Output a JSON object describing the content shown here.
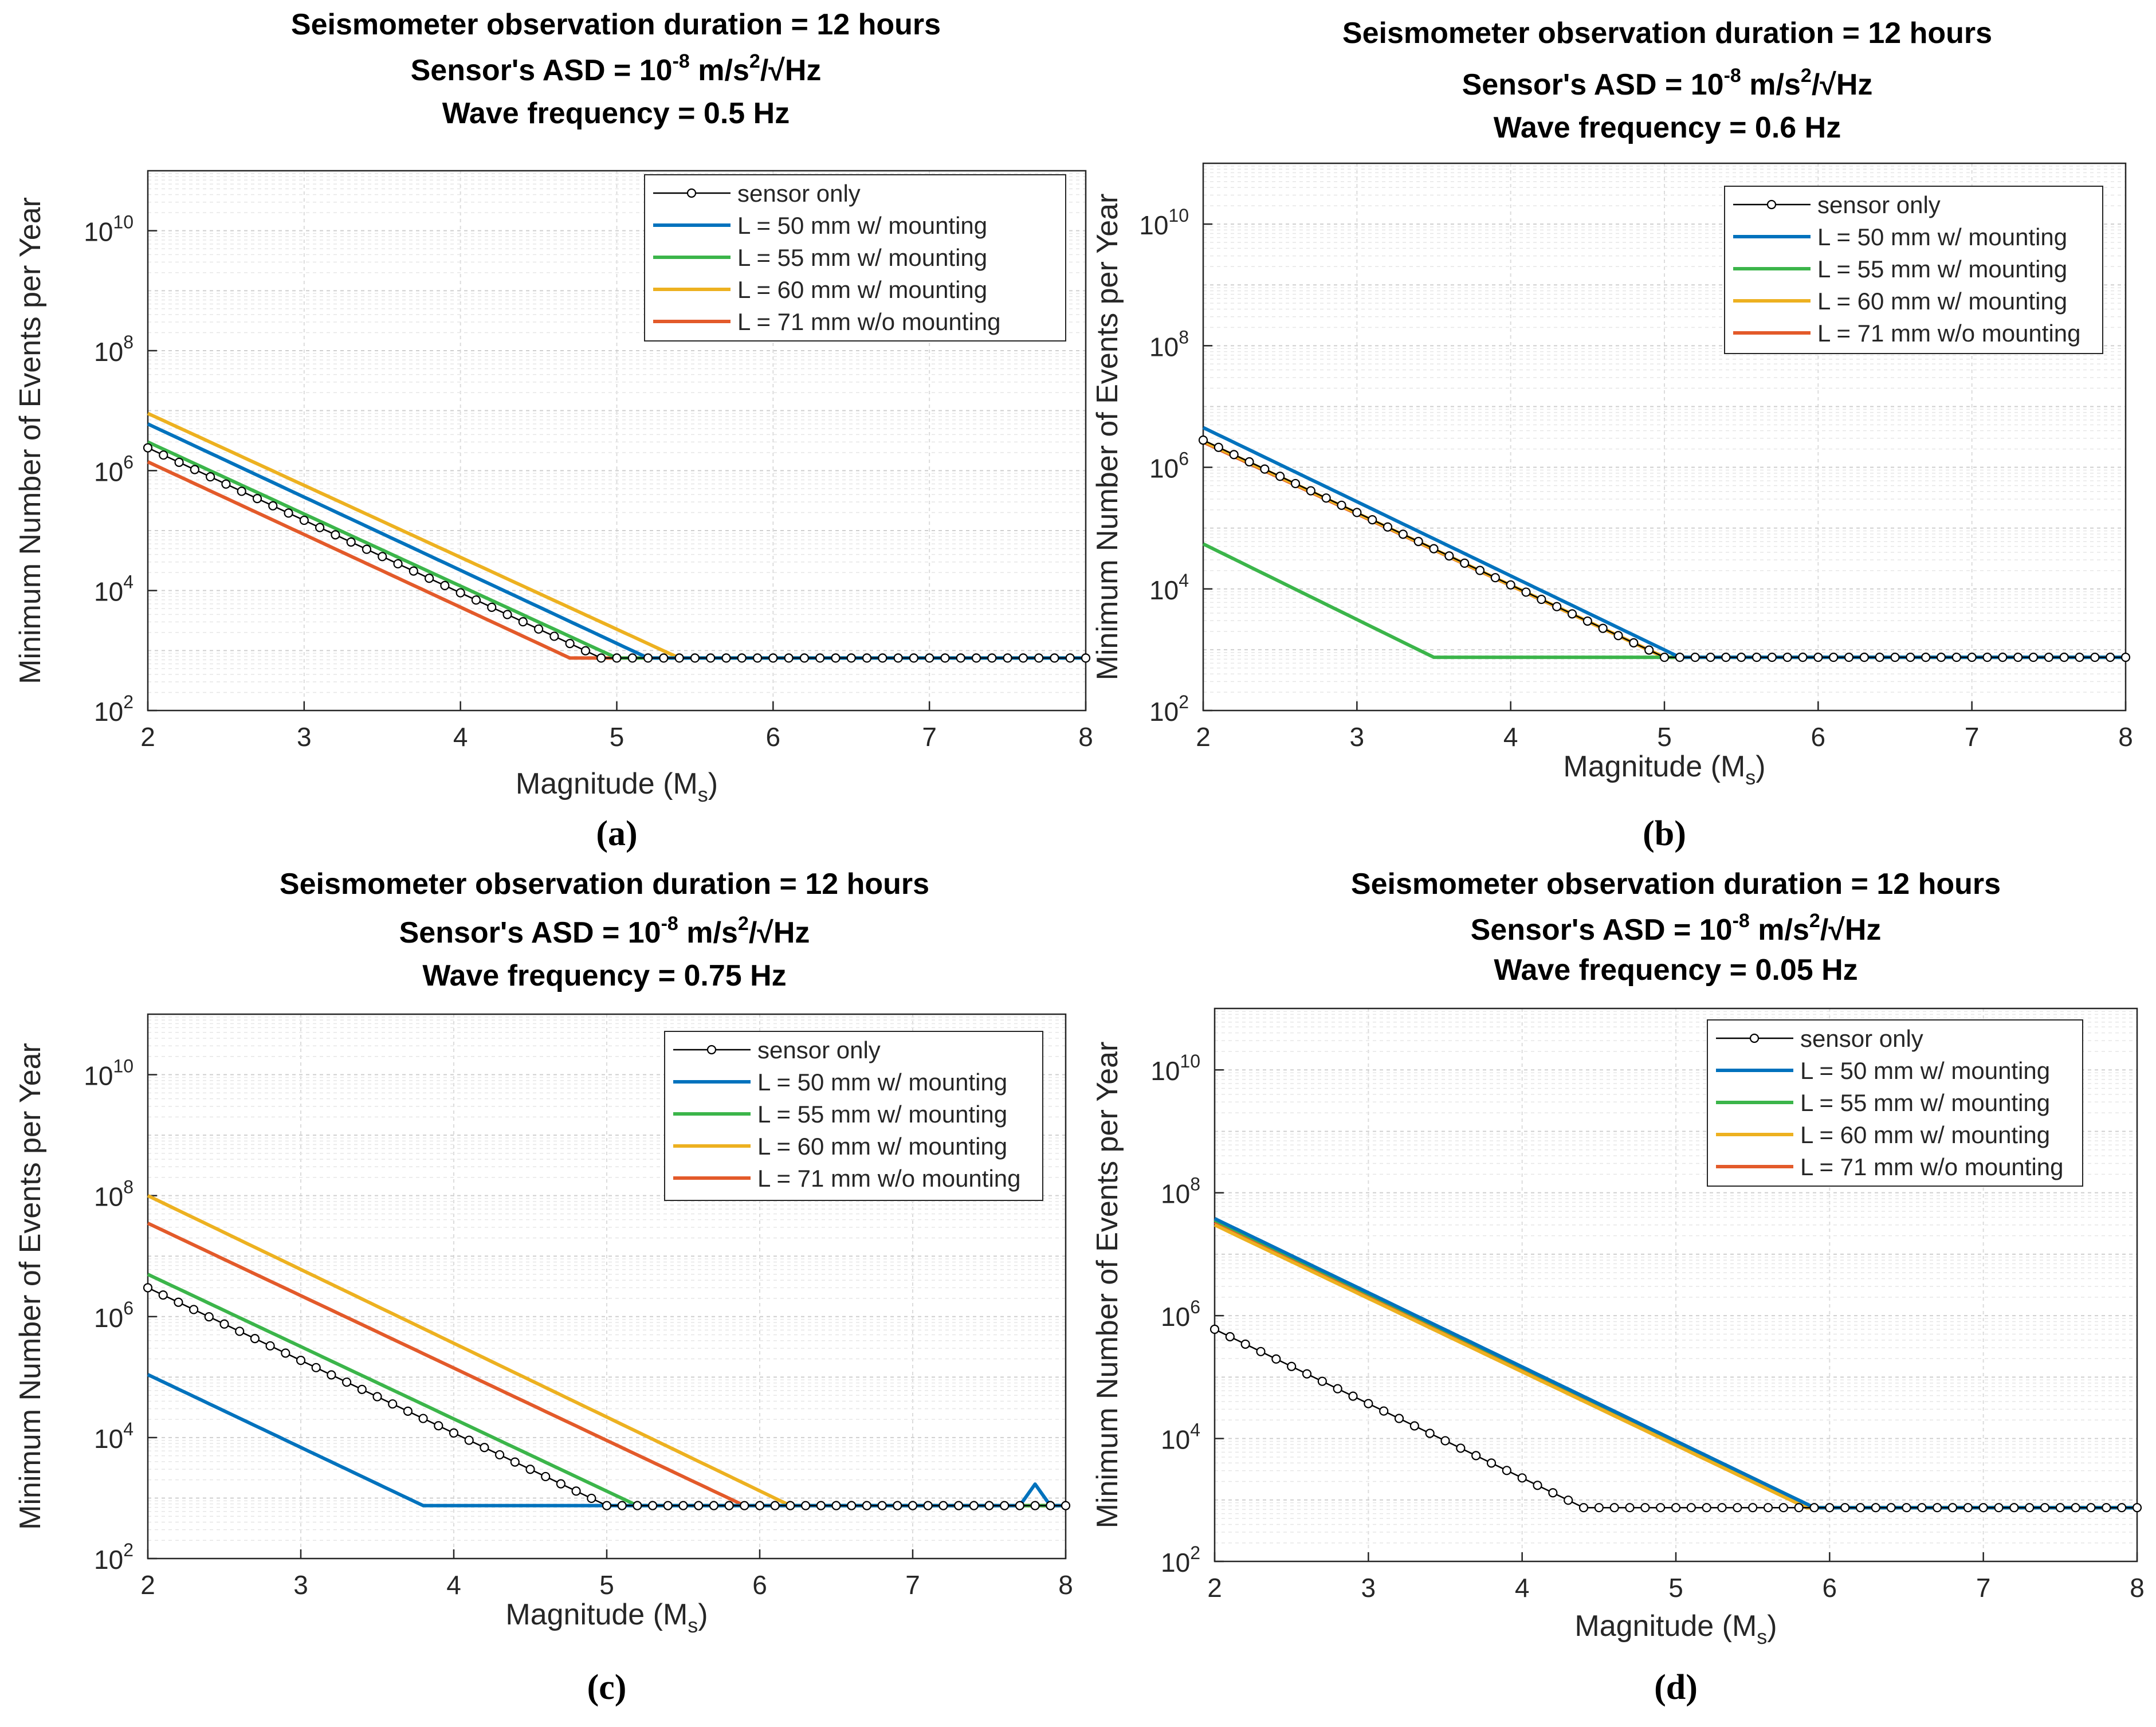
{
  "chart_data": [
    {
      "type": "line",
      "title": [
        "Seismometer observation duration = 12 hours",
        "Sensor's ASD = 10-8 m/s2/√Hz",
        "Wave frequency = 0.5 Hz"
      ],
      "title_lines": [
        [
          "Seismometer observation duration = 12 hours"
        ],
        [
          "Sensor's ASD = 10",
          "-8",
          " m/s",
          "2",
          "/√Hz"
        ],
        [
          "Wave frequency = 0.5 Hz"
        ]
      ],
      "xlabel": [
        "Magnitude (M",
        "s",
        ")"
      ],
      "ylabel": "Minimum Number of Events per Year",
      "xlim": [
        2,
        8
      ],
      "ylim": [
        100,
        100000000000
      ],
      "yscale": "log",
      "xticks": [
        "2",
        "3",
        "4",
        "5",
        "6",
        "7",
        "8"
      ],
      "yticks": [
        {
          "base": "10",
          "exp": "2"
        },
        {
          "base": "10",
          "exp": "4"
        },
        {
          "base": "10",
          "exp": "6"
        },
        {
          "base": "10",
          "exp": "8"
        },
        {
          "base": "10",
          "exp": "10"
        }
      ],
      "grid": true,
      "legend_position": "top-right",
      "panel_label": "(a)",
      "series": [
        {
          "name": "sensor only",
          "color": "#000000",
          "marker": "circle",
          "floor": 750,
          "start": 2400000,
          "kink": 4.9
        },
        {
          "name": "L = 50 mm w/ mounting",
          "color": "#0072bd",
          "floor": 750,
          "start": 6000000,
          "kink": 5.2
        },
        {
          "name": "L = 55 mm w/ mounting",
          "color": "#3bb54a",
          "floor": 750,
          "start": 3000000,
          "kink": 5.0
        },
        {
          "name": "L = 60 mm w/ mounting",
          "color": "#edb120",
          "floor": 750,
          "start": 9000000,
          "kink": 5.4
        },
        {
          "name": "L = 71 mm w/o mounting",
          "color": "#e35a2a",
          "floor": 750,
          "start": 1400000,
          "kink": 4.7
        }
      ]
    },
    {
      "type": "line",
      "title": [
        "Seismometer observation duration = 12 hours",
        "Sensor's ASD = 10-8 m/s2/√Hz",
        "Wave frequency = 0.6 Hz"
      ],
      "title_lines": [
        [
          "Seismometer observation duration = 12 hours"
        ],
        [
          "Sensor's ASD = 10",
          "-8",
          " m/s",
          "2",
          "/√Hz"
        ],
        [
          "Wave frequency = 0.6 Hz"
        ]
      ],
      "xlabel": [
        "Magnitude (M",
        "s",
        ")"
      ],
      "ylabel": "Minimum Number of Events per Year",
      "xlim": [
        2,
        8
      ],
      "ylim": [
        100,
        100000000000
      ],
      "yscale": "log",
      "xticks": [
        "2",
        "3",
        "4",
        "5",
        "6",
        "7",
        "8"
      ],
      "yticks": [
        {
          "base": "10",
          "exp": "2"
        },
        {
          "base": "10",
          "exp": "4"
        },
        {
          "base": "10",
          "exp": "6"
        },
        {
          "base": "10",
          "exp": "8"
        },
        {
          "base": "10",
          "exp": "10"
        }
      ],
      "grid": true,
      "legend_position": "top-right",
      "panel_label": "(b)",
      "series": [
        {
          "name": "sensor only",
          "color": "#000000",
          "marker": "circle",
          "floor": 750,
          "start": 2800000,
          "kink": 5.0
        },
        {
          "name": "L = 50 mm w/ mounting",
          "color": "#0072bd",
          "floor": 750,
          "start": 4500000,
          "kink": 5.1
        },
        {
          "name": "L = 55 mm w/ mounting",
          "color": "#3bb54a",
          "floor": 750,
          "start": 55000,
          "kink": 3.5
        },
        {
          "name": "L = 60 mm w/ mounting",
          "color": "#edb120",
          "floor": 750,
          "start": 2700000,
          "kink": 5.0
        },
        {
          "name": "L = 71 mm w/o mounting",
          "color": "#e35a2a",
          "floor": 750,
          "start": 2600000,
          "kink": 5.0
        }
      ]
    },
    {
      "type": "line",
      "title": [
        "Seismometer observation duration = 12 hours",
        "Sensor's ASD = 10-8 m/s2/√Hz",
        "Wave frequency = 0.75 Hz"
      ],
      "title_lines": [
        [
          "Seismometer observation duration = 12 hours"
        ],
        [
          "Sensor's ASD = 10",
          "-8",
          " m/s",
          "2",
          "/√Hz"
        ],
        [
          "Wave frequency = 0.75 Hz"
        ]
      ],
      "xlabel": [
        "Magnitude (M",
        "s",
        ")"
      ],
      "ylabel": "Minimum Number of Events per Year",
      "xlim": [
        2,
        8
      ],
      "ylim": [
        100,
        100000000000
      ],
      "yscale": "log",
      "xticks": [
        "2",
        "3",
        "4",
        "5",
        "6",
        "7",
        "8"
      ],
      "yticks": [
        {
          "base": "10",
          "exp": "2"
        },
        {
          "base": "10",
          "exp": "4"
        },
        {
          "base": "10",
          "exp": "6"
        },
        {
          "base": "10",
          "exp": "8"
        },
        {
          "base": "10",
          "exp": "10"
        }
      ],
      "grid": true,
      "legend_position": "top-right",
      "panel_label": "(c)",
      "series": [
        {
          "name": "sensor only",
          "color": "#000000",
          "marker": "circle",
          "floor": 750,
          "start": 3000000,
          "kink": 5.0
        },
        {
          "name": "L = 50 mm w/ mounting",
          "color": "#0072bd",
          "floor": 750,
          "start": 110000,
          "kink": 3.8,
          "spike": {
            "x": [
              7.7,
              7.8,
              7.9
            ],
            "y": [
              750,
              1700,
              750
            ]
          }
        },
        {
          "name": "L = 55 mm w/ mounting",
          "color": "#3bb54a",
          "floor": 750,
          "start": 5000000,
          "kink": 5.2
        },
        {
          "name": "L = 60 mm w/ mounting",
          "color": "#edb120",
          "floor": 750,
          "start": 100000000,
          "kink": 6.2
        },
        {
          "name": "L = 71 mm w/o mounting",
          "color": "#e35a2a",
          "floor": 750,
          "start": 35000000,
          "kink": 5.9
        }
      ]
    },
    {
      "type": "line",
      "title": [
        "Seismometer observation duration = 12 hours",
        "Sensor's ASD = 10-8 m/s2/√Hz",
        "Wave frequency = 0.05 Hz"
      ],
      "title_lines": [
        [
          "Seismometer observation duration = 12 hours"
        ],
        [
          "Sensor's ASD = 10",
          "-8",
          " m/s",
          "2",
          "/√Hz"
        ],
        [
          "Wave frequency = 0.05 Hz"
        ]
      ],
      "xlabel": [
        "Magnitude (M",
        "s",
        ")"
      ],
      "ylabel": "Minimum Number of Events per Year",
      "xlim": [
        2,
        8
      ],
      "ylim": [
        100,
        100000000000
      ],
      "yscale": "log",
      "xticks": [
        "2",
        "3",
        "4",
        "5",
        "6",
        "7",
        "8"
      ],
      "yticks": [
        {
          "base": "10",
          "exp": "2"
        },
        {
          "base": "10",
          "exp": "4"
        },
        {
          "base": "10",
          "exp": "6"
        },
        {
          "base": "10",
          "exp": "8"
        },
        {
          "base": "10",
          "exp": "10"
        }
      ],
      "grid": true,
      "legend_position": "top-right",
      "panel_label": "(d)",
      "series": [
        {
          "name": "sensor only",
          "color": "#000000",
          "marker": "circle",
          "floor": 750,
          "start": 600000,
          "kink": 4.4
        },
        {
          "name": "L = 50 mm w/ mounting",
          "color": "#0072bd",
          "floor": 750,
          "start": 38000000,
          "kink": 5.9
        },
        {
          "name": "L = 55 mm w/ mounting",
          "color": "#3bb54a",
          "floor": 750,
          "start": 36000000,
          "kink": 5.9
        },
        {
          "name": "L = 60 mm w/ mounting",
          "color": "#edb120",
          "floor": 750,
          "start": 30000000,
          "kink": 5.85
        },
        {
          "name": "L = 71 mm w/o mounting",
          "color": "#e35a2a",
          "floor": 750,
          "start": 33000000,
          "kink": 5.85
        }
      ]
    }
  ]
}
